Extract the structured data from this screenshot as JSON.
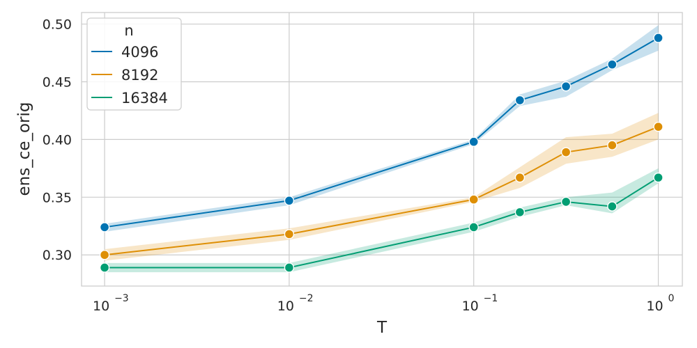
{
  "chart_data": {
    "type": "line",
    "xlabel": "T",
    "ylabel": "ens_ce_orig",
    "x_scale": "log",
    "x": [
      0.001,
      0.01,
      0.1,
      0.1778,
      0.3162,
      0.5623,
      1.0
    ],
    "xlim": [
      0.00075,
      1.35
    ],
    "ylim": [
      0.273,
      0.51
    ],
    "x_ticks": [
      {
        "value": 0.001,
        "base": "10",
        "exp": "−3"
      },
      {
        "value": 0.01,
        "base": "10",
        "exp": "−2"
      },
      {
        "value": 0.1,
        "base": "10",
        "exp": "−1"
      },
      {
        "value": 1.0,
        "base": "10",
        "exp": "0"
      }
    ],
    "y_ticks": [
      0.3,
      0.35,
      0.4,
      0.45,
      0.5
    ],
    "y_tick_labels": [
      "0.30",
      "0.35",
      "0.40",
      "0.45",
      "0.50"
    ],
    "grid": true,
    "legend": {
      "title": "n",
      "position": "top-left"
    },
    "series": [
      {
        "name": "4096",
        "color": "#0173b2",
        "values": [
          0.324,
          0.347,
          0.398,
          0.434,
          0.446,
          0.465,
          0.488
        ],
        "lower": [
          0.32,
          0.343,
          0.396,
          0.429,
          0.437,
          0.46,
          0.477
        ],
        "upper": [
          0.327,
          0.35,
          0.4,
          0.439,
          0.451,
          0.47,
          0.499
        ]
      },
      {
        "name": "8192",
        "color": "#de8f05",
        "values": [
          0.3,
          0.318,
          0.348,
          0.367,
          0.389,
          0.395,
          0.411
        ],
        "lower": [
          0.295,
          0.313,
          0.346,
          0.358,
          0.379,
          0.385,
          0.4
        ],
        "upper": [
          0.305,
          0.323,
          0.35,
          0.376,
          0.402,
          0.405,
          0.423
        ]
      },
      {
        "name": "16384",
        "color": "#029e73",
        "values": [
          0.289,
          0.289,
          0.324,
          0.337,
          0.346,
          0.342,
          0.367
        ],
        "lower": [
          0.285,
          0.285,
          0.32,
          0.333,
          0.343,
          0.336,
          0.362
        ],
        "upper": [
          0.293,
          0.293,
          0.328,
          0.341,
          0.35,
          0.354,
          0.375
        ]
      }
    ]
  }
}
